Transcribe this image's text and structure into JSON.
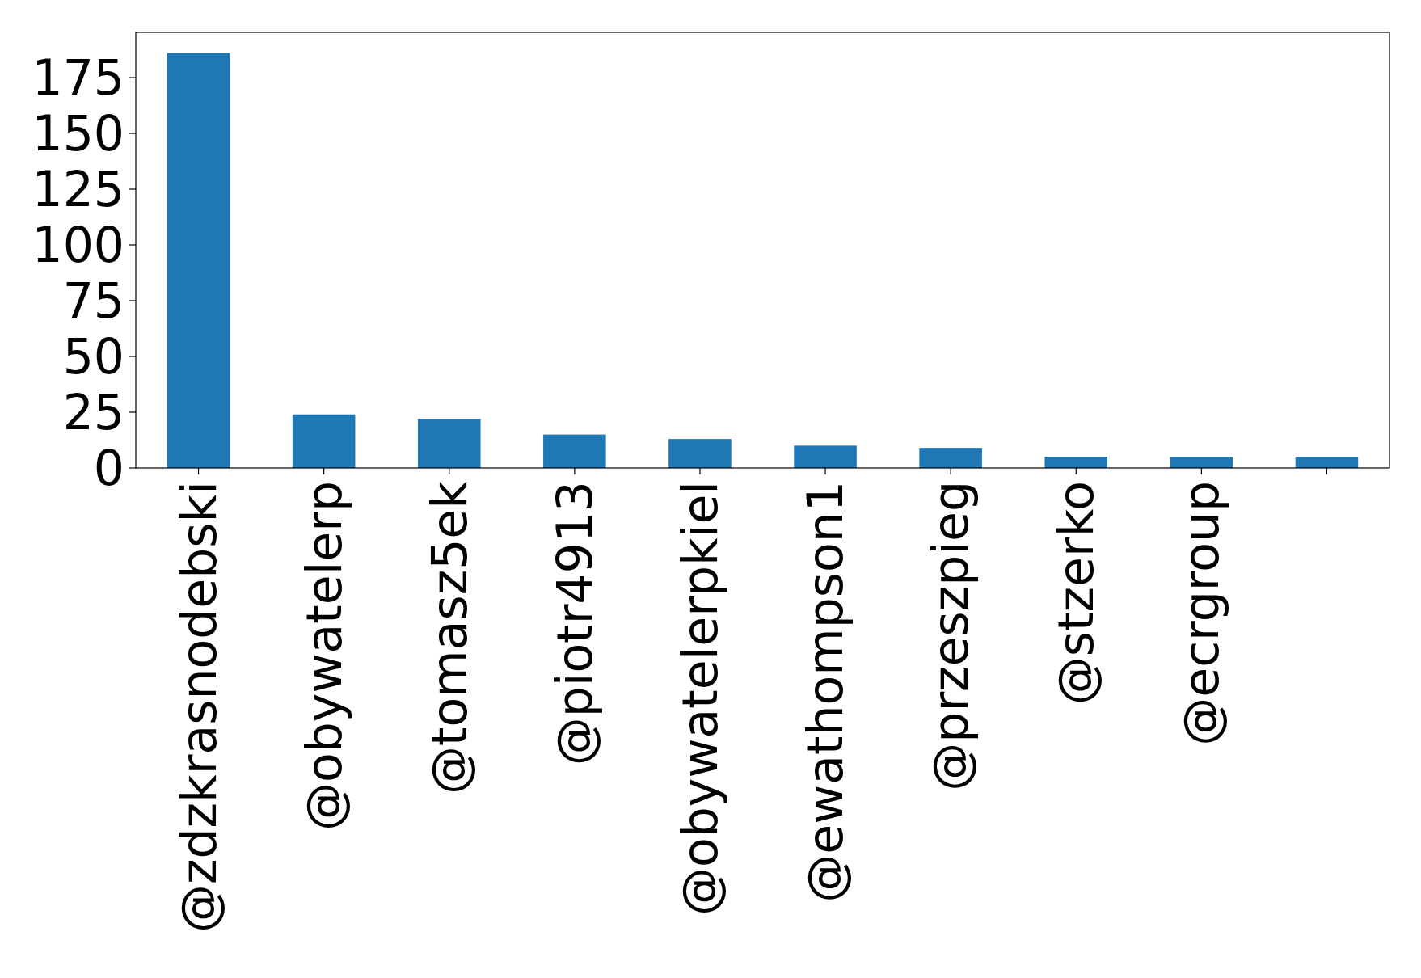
{
  "chart_data": {
    "type": "bar",
    "categories": [
      "@zdzkrasnodebski",
      "@obywatelerp",
      "@tomasz5ek",
      "@piotr4913",
      "@obywatelerpkiel",
      "@ewathompson1",
      "@przeszpieg",
      "@stzerko",
      "@ecrgroup",
      null
    ],
    "values": [
      186,
      24,
      22,
      15,
      13,
      10,
      9,
      5,
      5,
      5
    ],
    "color": "#1f77b4",
    "ylim": [
      0,
      195.3
    ],
    "yticks": [
      0,
      25,
      50,
      75,
      100,
      125,
      150,
      175
    ],
    "grid": false
  }
}
